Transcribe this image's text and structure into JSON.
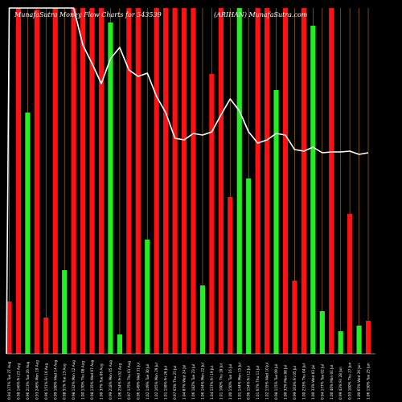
{
  "chart_data": {
    "type": "bar",
    "title": "MunafaSutra Money Flow Charts for 543539",
    "subtitle": "(ARIHAN) MunafaSutra.com",
    "colors": {
      "background": "#000000",
      "up": "#22ee22",
      "down": "#ff1111",
      "guide": "#a06a1c",
      "line": "#ffffff",
      "text": "#ffffff"
    },
    "categories": [
      "0.94 177% Tue 27 Aug",
      "0.98 146% Fri 23 Aug",
      "0.96 213% Tue 20 Aug",
      "0.93 246% Mon 19 Aug",
      "0.96 151% Fri 16 Aug",
      "0.99 100% Wed 14 Aug",
      "0.98 51% Tue 13 Aug",
      "0.98 132% Mon 12 Aug",
      "1.00 170% Thu 08 Aug",
      "0.98 135% Wed 07 Aug",
      "1.00 37% Tue 06 Aug",
      "0.99 218% Mon 05 Aug",
      "1.06 234% Fri 02 Aug",
      "0.97 175% Thu 01 Aug",
      "0.96 149% Wed 31 Jul",
      "1.02 149% Tue 30 Jul",
      "1.02 165% Mon 29 Jul",
      "1.01 158% Fri 26 Jul",
      "0.97 63% Thu 25 Jul",
      "1.04 87% Wed 24 Jul",
      "1.06 182% Tue 23 Jul",
      "1.06 144% Mon 22 Jul",
      "1.04 137% Fri 19 Jul",
      "1.01 100% Thu 18 Jul",
      "1.00 150% Tue 16 Jul",
      "1.01 144% Mon 15 Jul",
      "0.96 154% Fri 12 Jul",
      "1.01 67% Thu 11 Jul",
      "1.02 155% Wed 10 Jul",
      "0.98 115% Tue 09 Jul",
      "1.00 32% Mon 08 Jul",
      "0.99 163% Fri 05 Jul",
      "1.00 233% Thu 04 Jul",
      "1.00 33% Wed 03 Jul",
      "0.94 177% Tue 02 Jul",
      "1.00 40% Mon 01 Jul",
      "0.99 43% Fri 28 Jun",
      "0.93 100% Thu 27 Jun",
      "1.00 65% Wed 26 Jun",
      "1.06 150% Tue 25 Jun"
    ],
    "values": [
      65,
      430,
      300,
      428,
      45,
      430,
      104,
      430,
      430,
      430,
      430,
      412,
      24,
      430,
      430,
      142,
      430,
      430,
      430,
      430,
      430,
      85,
      348,
      430,
      195,
      430,
      218,
      430,
      430,
      328,
      430,
      91,
      430,
      408,
      53,
      430,
      28,
      174,
      35,
      41
    ],
    "directions": [
      "down",
      "down",
      "up",
      "down",
      "down",
      "down",
      "up",
      "down",
      "down",
      "down",
      "down",
      "up",
      "up",
      "down",
      "down",
      "up",
      "down",
      "down",
      "down",
      "down",
      "down",
      "up",
      "down",
      "down",
      "down",
      "up",
      "up",
      "down",
      "down",
      "up",
      "down",
      "down",
      "down",
      "up",
      "up",
      "down",
      "up",
      "down",
      "up",
      "down"
    ],
    "line": [
      430,
      430,
      430,
      430,
      430,
      430,
      430,
      430,
      384,
      361,
      336,
      367,
      381,
      353,
      345,
      349,
      320,
      300,
      268,
      266,
      274,
      272,
      276,
      297,
      317,
      302,
      276,
      262,
      266,
      274,
      272,
      254,
      252,
      257,
      250,
      251,
      251,
      252,
      248,
      250
    ],
    "ylim": [
      0,
      430
    ],
    "grid": false,
    "legend": "none"
  }
}
